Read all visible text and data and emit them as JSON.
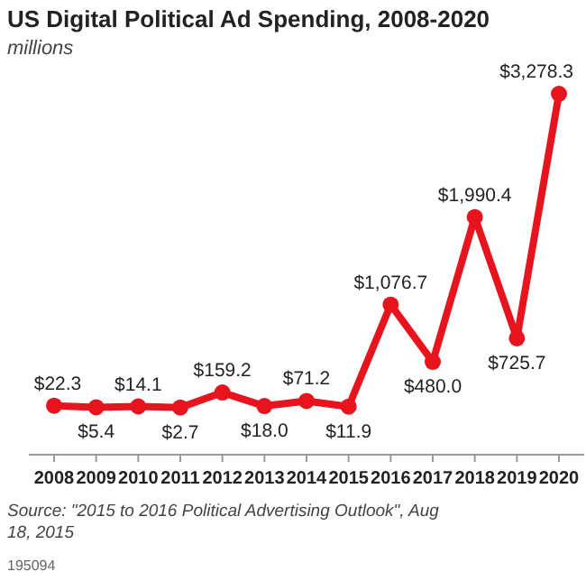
{
  "chart_data": {
    "type": "line",
    "title": "US Digital Political Ad Spending, 2008-2020",
    "subtitle": "millions",
    "categories": [
      "2008",
      "2009",
      "2010",
      "2011",
      "2012",
      "2013",
      "2014",
      "2015",
      "2016",
      "2017",
      "2018",
      "2019",
      "2020"
    ],
    "series": [
      {
        "color": "#e8141d",
        "values": [
          22.3,
          5.4,
          14.1,
          2.7,
          159.2,
          18.0,
          71.2,
          11.9,
          1076.7,
          480.0,
          1990.4,
          725.7,
          3278.3
        ],
        "value_labels": [
          "$22.3",
          "$5.4",
          "$14.1",
          "$2.7",
          "$159.2",
          "$18.0",
          "$71.2",
          "$11.9",
          "$1,076.7",
          "$480.0",
          "$1,990.4",
          "$725.7",
          "$3,278.3"
        ]
      }
    ],
    "marker": "circle",
    "line_style": "solid",
    "annotations": [
      "Source: \"2015 to 2016 Political Advertising Outlook\", Aug 18, 2015",
      "195094"
    ]
  }
}
